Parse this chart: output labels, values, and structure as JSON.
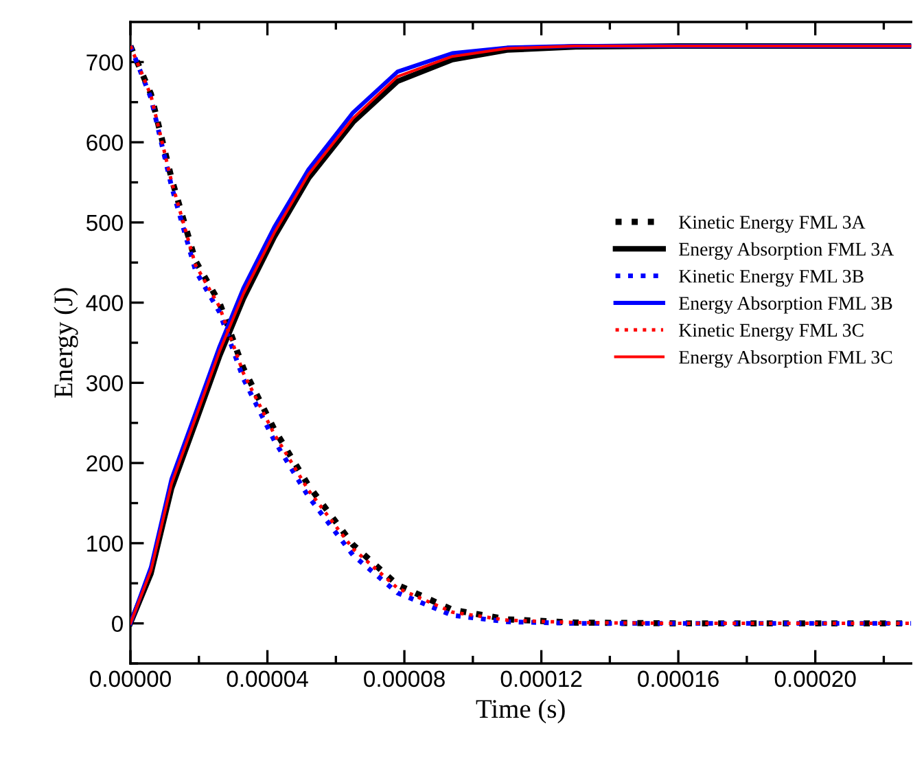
{
  "chart_data": {
    "type": "line",
    "xlabel": "Time (s)",
    "ylabel": "Energy (J)",
    "x": [
      0,
      6e-06,
      1.2e-05,
      1.9e-05,
      2.6e-05,
      3.3e-05,
      4.2e-05,
      5.2e-05,
      6.5e-05,
      7.8e-05,
      9.4e-05,
      0.00011,
      0.00013,
      0.00016,
      0.0002,
      0.000228
    ],
    "series": [
      {
        "name": "Kinetic Energy FML 3A",
        "color": "#000000",
        "line_style": "dotted",
        "values": [
          720,
          660,
          555,
          452,
          400,
          318,
          242,
          172,
          98,
          48,
          17,
          5,
          1,
          0,
          0,
          0
        ]
      },
      {
        "name": "Energy Absorption FML 3A",
        "color": "#000000",
        "line_style": "solid",
        "values": [
          0,
          62,
          168,
          250,
          333,
          405,
          482,
          555,
          625,
          676,
          703,
          715,
          719,
          720,
          720,
          720
        ]
      },
      {
        "name": "Kinetic Energy FML 3B",
        "color": "#0000ff",
        "line_style": "dotted",
        "values": [
          720,
          655,
          545,
          440,
          388,
          305,
          228,
          158,
          85,
          38,
          10,
          2,
          0,
          0,
          0,
          0
        ]
      },
      {
        "name": "Energy Absorption FML 3B",
        "color": "#0000ff",
        "line_style": "solid",
        "values": [
          0,
          70,
          180,
          262,
          345,
          418,
          494,
          566,
          637,
          688,
          711,
          718,
          720,
          720,
          720,
          720
        ]
      },
      {
        "name": "Kinetic Energy FML 3C",
        "color": "#ff0000",
        "line_style": "dotted",
        "values": [
          720,
          658,
          551,
          447,
          395,
          312,
          236,
          166,
          93,
          44,
          14,
          4,
          1,
          0,
          0,
          0
        ]
      },
      {
        "name": "Energy Absorption FML 3C",
        "color": "#ff0000",
        "line_style": "solid",
        "values": [
          0,
          66,
          174,
          256,
          339,
          411,
          487,
          560,
          630,
          682,
          707,
          717,
          720,
          720,
          720,
          720
        ]
      }
    ],
    "xlim": [
      0,
      0.000228
    ],
    "ylim": [
      -50,
      750
    ],
    "xticks": [
      {
        "value": 0,
        "label": "0.00000"
      },
      {
        "value": 4e-05,
        "label": "0.00004"
      },
      {
        "value": 8e-05,
        "label": "0.00008"
      },
      {
        "value": 0.00012,
        "label": "0.00012"
      },
      {
        "value": 0.00016,
        "label": "0.00016"
      },
      {
        "value": 0.0002,
        "label": "0.00020"
      }
    ],
    "yticks": [
      0,
      100,
      200,
      300,
      400,
      500,
      600,
      700
    ],
    "legend": "right",
    "grid": false,
    "marker": "none"
  }
}
